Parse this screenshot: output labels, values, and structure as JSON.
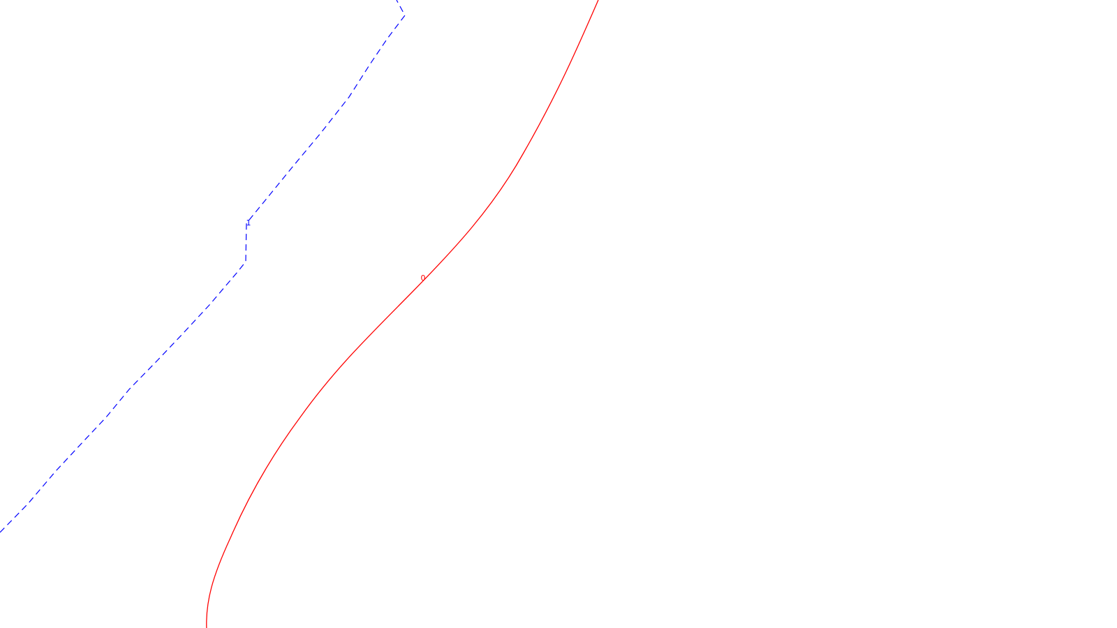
{
  "background_color": "#ffffff",
  "curves": [
    {
      "id": "solid",
      "label": "0",
      "color": "#ff0000",
      "style": "solid"
    },
    {
      "id": "dashed",
      "label": "1",
      "color": "#0000ff",
      "style": "dashed"
    }
  ]
}
